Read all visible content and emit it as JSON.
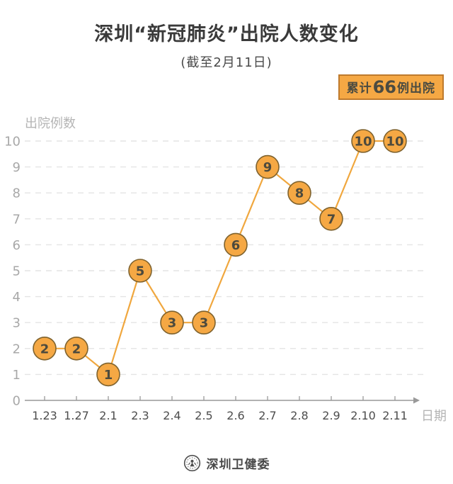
{
  "header": {
    "title": "深圳“新冠肺炎”出院人数变化",
    "subtitle": "(截至2月11日)"
  },
  "badge": {
    "prefix": "累计",
    "value": "66",
    "suffix": "例出院"
  },
  "chart_data": {
    "type": "line",
    "title": "深圳“新冠肺炎”出院人数变化",
    "subtitle": "(截至2月11日)",
    "categories": [
      "1.23",
      "1.27",
      "2.1",
      "2.3",
      "2.4",
      "2.5",
      "2.6",
      "2.7",
      "2.8",
      "2.9",
      "2.10",
      "2.11"
    ],
    "values": [
      2,
      2,
      1,
      5,
      3,
      3,
      6,
      9,
      8,
      7,
      10,
      10
    ],
    "xlabel": "日期",
    "ylabel": "出院例数",
    "ylim": [
      0,
      10
    ],
    "yticks": [
      0,
      1,
      2,
      3,
      4,
      5,
      6,
      7,
      8,
      9,
      10
    ],
    "grid": "horizontal-dashed",
    "legend": "none",
    "annotation_total": "累计66例出院",
    "line_color": "#F0A73E",
    "marker_fill": "#F5A844",
    "marker_stroke": "#7E622E",
    "point_label_color": "#4D4A3D",
    "axis_color": "#999999",
    "grid_color": "#E4E4E4",
    "ytick_color": "#A8A8A8",
    "xtick_color": "#4D4D4D",
    "axis_title_color": "#B5B5B5"
  },
  "footer": {
    "org": "深圳卫健委",
    "logo": "shenzhen-health-commission-logo"
  }
}
